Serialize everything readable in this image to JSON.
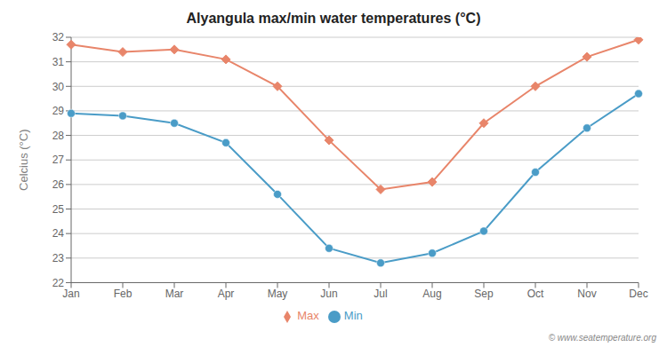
{
  "chart_data": {
    "type": "line",
    "title": "Alyangula max/min water temperatures (°C)",
    "ylabel": "Celcius (°C)",
    "annotations": [
      "© www.seatemperature.org"
    ],
    "categories": [
      "Jan",
      "Feb",
      "Mar",
      "Apr",
      "May",
      "Jun",
      "Jul",
      "Aug",
      "Sep",
      "Oct",
      "Nov",
      "Dec"
    ],
    "series": [
      {
        "name": "Max",
        "color": "#e8856a",
        "marker": "diamond",
        "values": [
          31.7,
          31.4,
          31.5,
          31.1,
          30.0,
          27.8,
          25.8,
          26.1,
          28.5,
          30.0,
          31.2,
          31.9
        ]
      },
      {
        "name": "Min",
        "color": "#4a9cc7",
        "marker": "circle",
        "values": [
          28.9,
          28.8,
          28.5,
          27.7,
          25.6,
          23.4,
          22.8,
          23.2,
          24.1,
          26.5,
          28.3,
          29.7
        ]
      }
    ],
    "ylim": [
      22,
      32
    ],
    "yticks": [
      22,
      23,
      24,
      25,
      26,
      27,
      28,
      29,
      30,
      31,
      32
    ],
    "grid": true,
    "legend": "bottom"
  }
}
